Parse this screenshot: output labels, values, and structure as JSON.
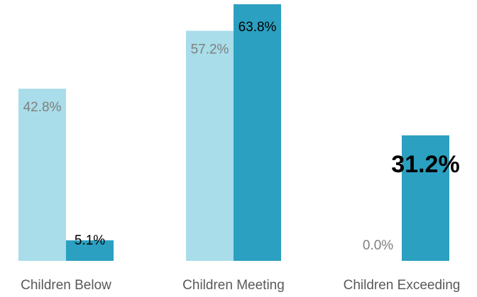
{
  "chart_data": {
    "type": "bar",
    "title": "",
    "xlabel": "",
    "ylabel": "",
    "categories": [
      "Children Below",
      "Children Meeting",
      "Children Exceeding"
    ],
    "series": [
      {
        "values": [
          42.8,
          57.2,
          0.0
        ],
        "labels": [
          "42.8%",
          "57.2%",
          "0.0%"
        ],
        "color": "#a8dde9"
      },
      {
        "values": [
          5.1,
          63.8,
          31.2
        ],
        "labels": [
          "5.1%",
          "63.8%",
          "31.2%"
        ],
        "color": "#2ba0c0"
      }
    ],
    "ylim": [
      0,
      63.8
    ],
    "grid": false,
    "legend": "none"
  }
}
